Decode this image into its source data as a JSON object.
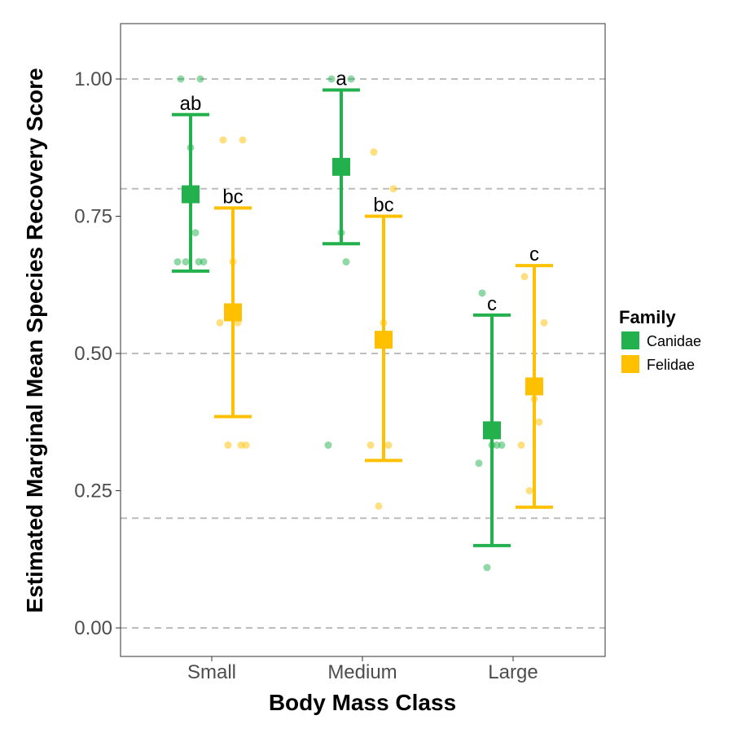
{
  "chart_data": {
    "type": "scatter",
    "xlabel": "Body Mass Class",
    "ylabel": "Estimated Marginal Mean Species Recovery Score",
    "categories": [
      "Small",
      "Medium",
      "Large"
    ],
    "ylim": [
      -0.05,
      1.1
    ],
    "y_ticks": [
      0.0,
      0.25,
      0.5,
      0.75,
      1.0
    ],
    "y_tick_labels": [
      "0.00",
      "0.25",
      "0.50",
      "0.75",
      "1.00"
    ],
    "dashed_reference_lines": [
      0.0,
      0.2,
      0.5,
      0.8,
      1.0
    ],
    "grid": false,
    "legend": {
      "title": "Family",
      "position": "right"
    },
    "series": [
      {
        "name": "Canidae",
        "color": "#22b14c",
        "means": [
          0.79,
          0.84,
          0.36
        ],
        "ci_lower": [
          0.65,
          0.7,
          0.15
        ],
        "ci_upper": [
          0.935,
          0.98,
          0.57
        ],
        "letters": [
          "ab",
          "a",
          "c"
        ],
        "raw_points": [
          [
            1.0,
            1.0,
            0.875,
            0.72,
            0.667,
            0.667,
            0.667,
            0.667
          ],
          [
            1.0,
            1.0,
            0.72,
            0.667,
            0.333
          ],
          [
            0.61,
            0.333,
            0.333,
            0.333,
            0.3,
            0.11
          ]
        ]
      },
      {
        "name": "Felidae",
        "color": "#ffc000",
        "means": [
          0.575,
          0.525,
          0.44
        ],
        "ci_lower": [
          0.385,
          0.305,
          0.22
        ],
        "ci_upper": [
          0.765,
          0.75,
          0.66
        ],
        "letters": [
          "bc",
          "bc",
          "c"
        ],
        "raw_points": [
          [
            0.889,
            0.889,
            0.667,
            0.556,
            0.556,
            0.333,
            0.333,
            0.333
          ],
          [
            0.867,
            0.8,
            0.556,
            0.333,
            0.333,
            0.222
          ],
          [
            0.64,
            0.556,
            0.417,
            0.375,
            0.333,
            0.25
          ]
        ]
      }
    ]
  }
}
